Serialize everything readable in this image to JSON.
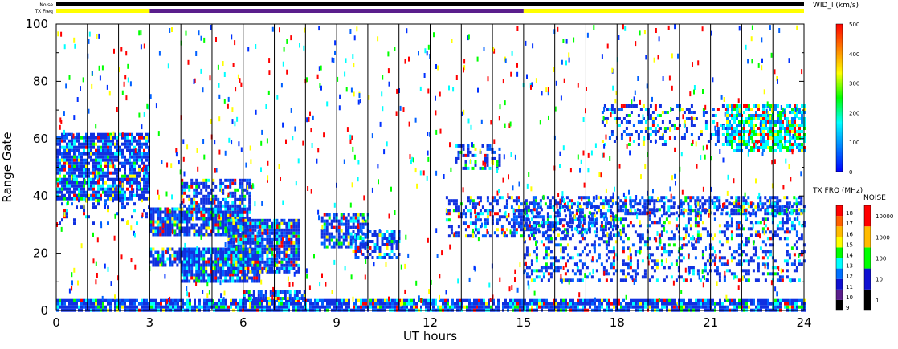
{
  "chart_data": {
    "type": "heatmap",
    "xlabel": "UT hours",
    "ylabel": "Range Gate",
    "xlim": [
      0,
      24
    ],
    "ylim": [
      0,
      100
    ],
    "x_ticks": [
      "0",
      "3",
      "6",
      "9",
      "12",
      "15",
      "18",
      "21",
      "24"
    ],
    "y_ticks": [
      "0",
      "20",
      "40",
      "60",
      "80",
      "100"
    ],
    "scan_boundaries_hours": [
      1,
      2,
      3,
      4,
      5,
      6,
      7,
      8,
      9,
      10,
      11,
      12,
      13,
      14,
      15,
      16,
      17,
      18,
      19,
      20,
      21,
      22,
      23
    ],
    "top_strip": {
      "noise_label": "Noise",
      "txfreq_label": "TX Freq",
      "noise_color": "#000000",
      "txfreq_segments": [
        {
          "start": 0,
          "end": 3,
          "color": "#ffff00"
        },
        {
          "start": 3,
          "end": 15,
          "color": "#5a1e8c"
        },
        {
          "start": 15,
          "end": 24,
          "color": "#ffff00"
        }
      ]
    },
    "scatter_regions": [
      {
        "t0": 0.0,
        "t1": 3.0,
        "r0": 39,
        "r1": 62,
        "level": "blue",
        "density": 0.85
      },
      {
        "t0": 0.0,
        "t1": 3.0,
        "r0": 30,
        "r1": 40,
        "level": "blue",
        "density": 0.15
      },
      {
        "t0": 3.0,
        "t1": 6.2,
        "r0": 26,
        "r1": 36,
        "level": "blue",
        "density": 0.85
      },
      {
        "t0": 4.0,
        "t1": 6.2,
        "r0": 34,
        "r1": 46,
        "level": "blue",
        "density": 0.6
      },
      {
        "t0": 3.0,
        "t1": 4.5,
        "r0": 16,
        "r1": 22,
        "level": "blue",
        "density": 0.7
      },
      {
        "t0": 4.0,
        "t1": 6.5,
        "r0": 10,
        "r1": 22,
        "level": "blue",
        "density": 0.9
      },
      {
        "t0": 5.5,
        "t1": 7.8,
        "r0": 14,
        "r1": 32,
        "level": "blue",
        "density": 0.9
      },
      {
        "t0": 8.5,
        "t1": 10.0,
        "r0": 22,
        "r1": 34,
        "level": "blue",
        "density": 0.7
      },
      {
        "t0": 9.5,
        "t1": 11.0,
        "r0": 18,
        "r1": 28,
        "level": "blue",
        "density": 0.6
      },
      {
        "t0": 12.8,
        "t1": 14.2,
        "r0": 50,
        "r1": 58,
        "level": "blue",
        "density": 0.4
      },
      {
        "t0": 12.5,
        "t1": 18.0,
        "r0": 26,
        "r1": 40,
        "level": "blue",
        "density": 0.45
      },
      {
        "t0": 15.0,
        "t1": 24.0,
        "r0": 10,
        "r1": 38,
        "level": "blue",
        "density": 0.3
      },
      {
        "t0": 18.0,
        "t1": 24.0,
        "r0": 34,
        "r1": 40,
        "level": "blue",
        "density": 0.5
      },
      {
        "t0": 21.5,
        "t1": 24.0,
        "r0": 56,
        "r1": 72,
        "level": "cyan",
        "density": 0.75
      },
      {
        "t0": 17.5,
        "t1": 21.5,
        "r0": 58,
        "r1": 72,
        "level": "blue",
        "density": 0.25
      },
      {
        "t0": 0.0,
        "t1": 24.0,
        "r0": 0,
        "r1": 4,
        "level": "blue",
        "density": 0.85
      },
      {
        "t0": 6.0,
        "t1": 8.0,
        "r0": 4,
        "r1": 7,
        "level": "blue",
        "density": 0.8
      }
    ],
    "colorbars": [
      {
        "title": "WID_l (km/s)",
        "ticks": [
          "0",
          "100",
          "200",
          "300",
          "400",
          "500"
        ],
        "range": [
          0,
          500
        ],
        "stops": [
          "#0000ff",
          "#0080ff",
          "#00ffff",
          "#00ff00",
          "#ffff00",
          "#ff8000",
          "#ff0000"
        ]
      },
      {
        "title": "TX FRQ (MHz)",
        "ticks": [
          "9",
          "10",
          "11",
          "12",
          "13",
          "14",
          "15",
          "16",
          "17",
          "18"
        ],
        "colors": [
          "#000000",
          "#5a1e8c",
          "#1010d0",
          "#0070ff",
          "#00ffff",
          "#00ff00",
          "#ffff00",
          "#ffbb00",
          "#ff6000",
          "#ff0000"
        ]
      },
      {
        "title": "NOISE",
        "ticks": [
          "1",
          "10",
          "100",
          "1000",
          "10000"
        ],
        "colors": [
          "#000000",
          "#1010d0",
          "#00ff00",
          "#ffbb00",
          "#ff0000"
        ]
      }
    ]
  }
}
